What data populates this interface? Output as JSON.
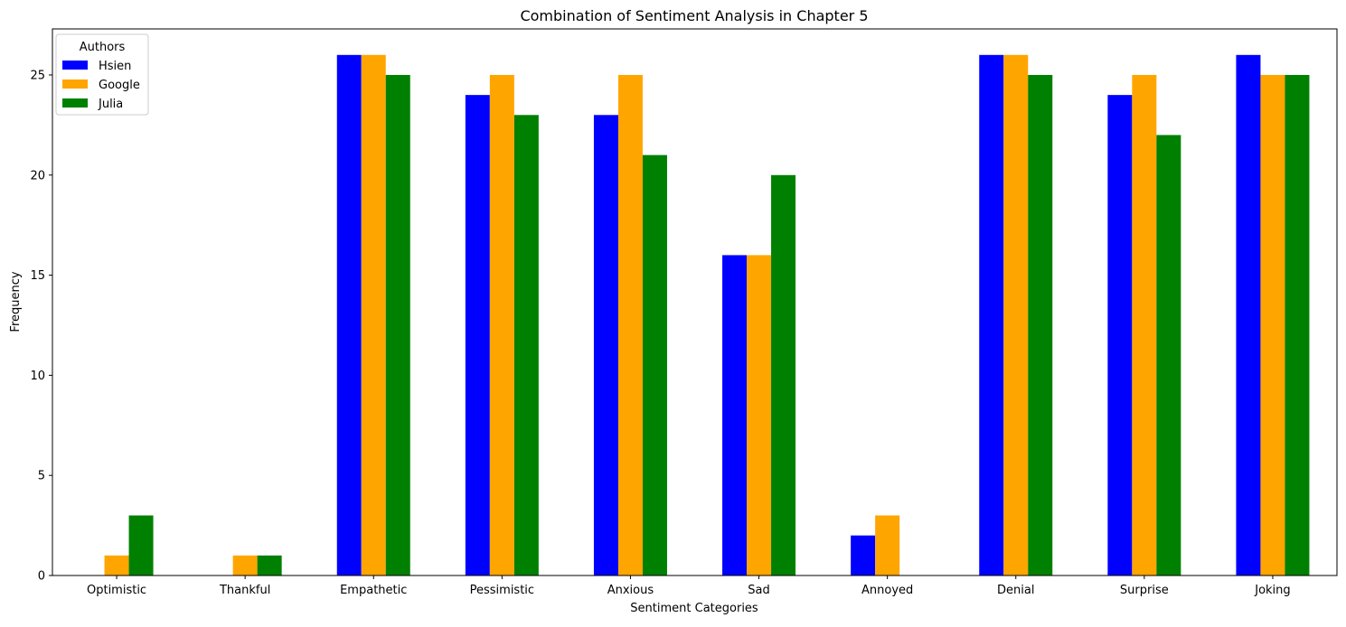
{
  "chart_data": {
    "type": "bar",
    "title": "Combination of Sentiment Analysis in Chapter 5",
    "xlabel": "Sentiment Categories",
    "ylabel": "Frequency",
    "categories": [
      "Optimistic",
      "Thankful",
      "Empathetic",
      "Pessimistic",
      "Anxious",
      "Sad",
      "Annoyed",
      "Denial",
      "Surprise",
      "Joking"
    ],
    "series": [
      {
        "name": "Hsien",
        "color": "#0000ff",
        "values": [
          0,
          0,
          26,
          24,
          23,
          16,
          2,
          26,
          24,
          26
        ]
      },
      {
        "name": "Google",
        "color": "#ffa500",
        "values": [
          1,
          1,
          26,
          25,
          25,
          16,
          3,
          26,
          25,
          25
        ]
      },
      {
        "name": "Julia",
        "color": "#008000",
        "values": [
          3,
          1,
          25,
          23,
          21,
          20,
          0,
          25,
          22,
          25
        ]
      }
    ],
    "ylim": [
      0,
      27.3
    ],
    "yticks": [
      0,
      5,
      10,
      15,
      20,
      25
    ],
    "grid": false,
    "legend": {
      "title": "Authors",
      "position": "upper-left"
    }
  }
}
